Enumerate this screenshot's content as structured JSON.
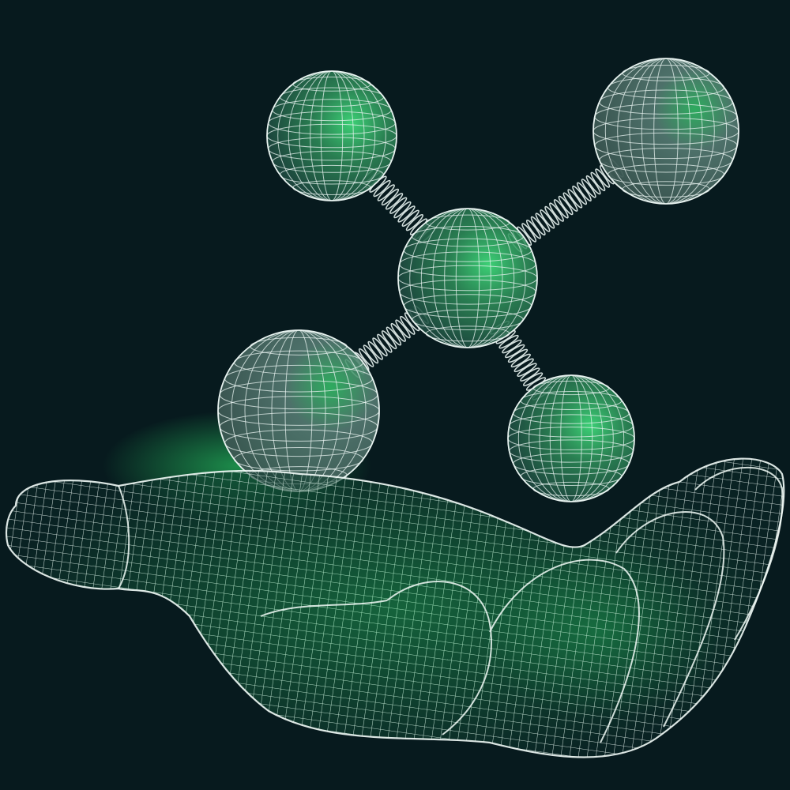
{
  "scene": {
    "background": "#071a1e",
    "wire_color": "#e8f3f0",
    "glow_color": "#2ee86e",
    "atom_fill": "#4f7a70",
    "atom_fill_green": "#2f8f5a"
  },
  "molecule": {
    "atoms": [
      {
        "name": "atom-top-left",
        "tint": "green"
      },
      {
        "name": "atom-top-right",
        "tint": "grey"
      },
      {
        "name": "atom-center",
        "tint": "green"
      },
      {
        "name": "atom-bottom-left",
        "tint": "grey"
      },
      {
        "name": "atom-bottom-right",
        "tint": "green"
      }
    ],
    "bonds": [
      {
        "name": "bond-center-top-left",
        "from": "atom-center",
        "to": "atom-top-left"
      },
      {
        "name": "bond-center-top-right",
        "from": "atom-center",
        "to": "atom-top-right"
      },
      {
        "name": "bond-center-bottom-left",
        "from": "atom-center",
        "to": "atom-bottom-left"
      },
      {
        "name": "bond-center-bottom-right",
        "from": "atom-center",
        "to": "atom-bottom-right"
      }
    ]
  },
  "hand": {
    "style": "wireframe",
    "gesture": "open-palm-up"
  }
}
